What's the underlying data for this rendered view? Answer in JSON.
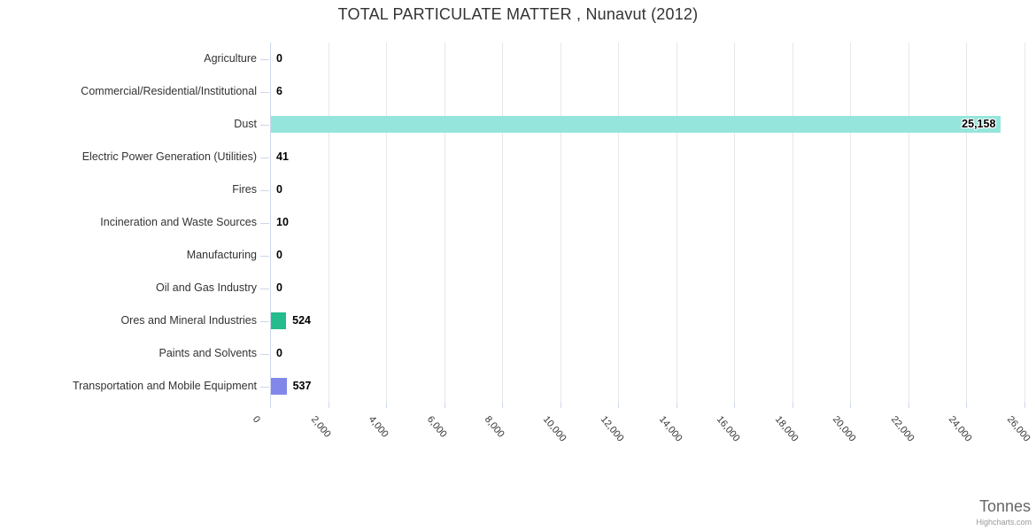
{
  "title": "TOTAL PARTICULATE MATTER , Nunavut (2012)",
  "credits": "Highcharts.com",
  "chart_data": {
    "type": "bar",
    "orientation": "horizontal",
    "title": "TOTAL PARTICULATE MATTER , Nunavut (2012)",
    "categories": [
      "Agriculture",
      "Commercial/Residential/Institutional",
      "Dust",
      "Electric Power Generation (Utilities)",
      "Fires",
      "Incineration and Waste Sources",
      "Manufacturing",
      "Oil and Gas Industry",
      "Ores and Mineral Industries",
      "Paints and Solvents",
      "Transportation and Mobile Equipment"
    ],
    "values": [
      0,
      6,
      25158,
      41,
      0,
      10,
      0,
      0,
      524,
      0,
      537
    ],
    "value_labels": [
      "0",
      "6",
      "25,158",
      "41",
      "0",
      "10",
      "0",
      "0",
      "524",
      "0",
      "537"
    ],
    "bar_colors": [
      null,
      null,
      "#96e5dc",
      null,
      null,
      null,
      null,
      null,
      "#24bc8c",
      null,
      "#8288e9"
    ],
    "xlabel": "Tonnes",
    "xlim": [
      0,
      26000
    ],
    "x_tick_step": 2000,
    "x_tick_labels": [
      "0",
      "2,000",
      "4,000",
      "6,000",
      "8,000",
      "10,000",
      "12,000",
      "14,000",
      "16,000",
      "18,000",
      "20,000",
      "22,000",
      "24,000",
      "26,000"
    ],
    "grid": true,
    "legend": "none",
    "colors": {
      "axis_line": "#ccd6eb",
      "grid_line": "#e6e6e6",
      "title_text": "#333333",
      "label_text": "#333333",
      "axis_title_text": "#666666",
      "credits_text": "#999999"
    }
  }
}
